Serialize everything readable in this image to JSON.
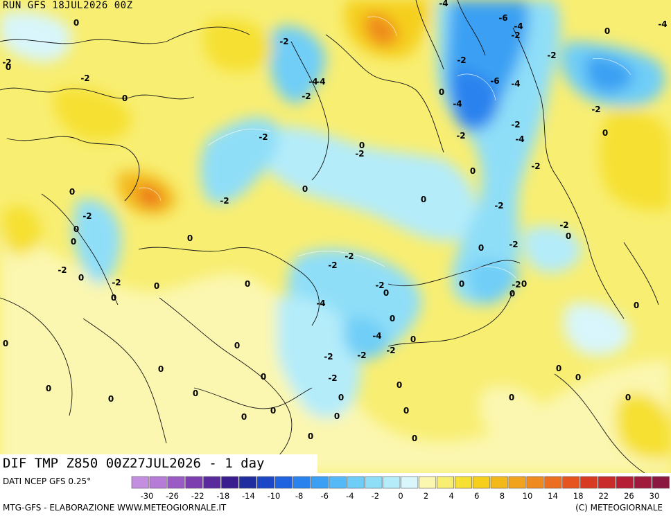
{
  "header": {
    "run": "RUN GFS 18JUL2026 00Z"
  },
  "caption": {
    "text": "DIF TMP Z850 00Z27JUL2026 - 1 day"
  },
  "footer": {
    "source": "DATI NCEP GFS 0.25°",
    "elaboration": "MTG-GFS - ELABORAZIONE WWW.METEOGIORNALE.IT",
    "copyright": "(C) METEOGIORNALE"
  },
  "legend": {
    "colors": [
      "#c48ee0",
      "#b57bd6",
      "#9b5bc4",
      "#7d3fb0",
      "#5a2b9c",
      "#3a1e90",
      "#1f2d9e",
      "#1c48c8",
      "#1f63e0",
      "#2a82ee",
      "#3ba0f3",
      "#55b9f7",
      "#6fcef7",
      "#8fdef8",
      "#b4ecfa",
      "#d8f6fb",
      "#fbf7b0",
      "#f8ee72",
      "#f6e033",
      "#f5cf1a",
      "#f3b91a",
      "#f1a31d",
      "#ef8a1e",
      "#ec6f1f",
      "#e65420",
      "#d93a22",
      "#c92a2a",
      "#b51e34",
      "#a01a3c",
      "#8a1840"
    ],
    "labels": [
      "-30",
      "-26",
      "-22",
      "-18",
      "-14",
      "-10",
      "-8",
      "-6",
      "-4",
      "-2",
      "0",
      "2",
      "4",
      "6",
      "8",
      "10",
      "14",
      "18",
      "22",
      "26",
      "30"
    ]
  },
  "map_labels": [
    {
      "t": "-4"
    },
    {
      "t": "-6"
    },
    {
      "t": "-4"
    },
    {
      "t": "-2"
    },
    {
      "t": "0"
    },
    {
      "t": "0"
    },
    {
      "t": "-2"
    },
    {
      "t": "-4"
    },
    {
      "t": "-2"
    },
    {
      "t": "-2"
    },
    {
      "t": "-2"
    },
    {
      "t": "-6"
    },
    {
      "t": "-4"
    },
    {
      "t": "-2"
    },
    {
      "t": "-4"
    },
    {
      "t": "-2"
    },
    {
      "t": "-4"
    },
    {
      "t": "-4"
    },
    {
      "t": "0"
    },
    {
      "t": "-2"
    },
    {
      "t": "0"
    },
    {
      "t": "-2"
    },
    {
      "t": "0"
    },
    {
      "t": "0"
    },
    {
      "t": "-2"
    },
    {
      "t": "-4"
    },
    {
      "t": "-2"
    },
    {
      "t": "-2"
    },
    {
      "t": "-2"
    },
    {
      "t": "0"
    },
    {
      "t": "0"
    },
    {
      "t": "0"
    },
    {
      "t": "-2"
    },
    {
      "t": "0"
    },
    {
      "t": "0"
    },
    {
      "t": "-2"
    },
    {
      "t": "-2"
    },
    {
      "t": "0"
    },
    {
      "t": "-2"
    },
    {
      "t": "0"
    },
    {
      "t": "0"
    },
    {
      "t": "-2"
    },
    {
      "t": "-2"
    },
    {
      "t": "0"
    },
    {
      "t": "-2"
    },
    {
      "t": "-2"
    },
    {
      "t": "-2"
    },
    {
      "t": "0"
    },
    {
      "t": "-4"
    },
    {
      "t": "-2"
    },
    {
      "t": "0"
    },
    {
      "t": "-2"
    },
    {
      "t": "-4"
    },
    {
      "t": "-2"
    },
    {
      "t": "-2"
    },
    {
      "t": "0"
    },
    {
      "t": "-2"
    },
    {
      "t": "0"
    },
    {
      "t": "0"
    },
    {
      "t": "-2"
    },
    {
      "t": "0"
    },
    {
      "t": "0"
    },
    {
      "t": "0"
    },
    {
      "t": "0"
    },
    {
      "t": "0"
    },
    {
      "t": "0"
    },
    {
      "t": "0"
    },
    {
      "t": "0"
    },
    {
      "t": "0"
    },
    {
      "t": "0"
    },
    {
      "t": "0"
    },
    {
      "t": "0"
    },
    {
      "t": "0"
    },
    {
      "t": "0"
    },
    {
      "t": "0"
    },
    {
      "t": "0"
    },
    {
      "t": "0"
    },
    {
      "t": "0"
    },
    {
      "t": "0"
    },
    {
      "t": "0"
    },
    {
      "t": "0"
    },
    {
      "t": "0"
    },
    {
      "t": "0"
    },
    {
      "t": "0"
    },
    {
      "t": "0"
    },
    {
      "t": "0"
    }
  ]
}
